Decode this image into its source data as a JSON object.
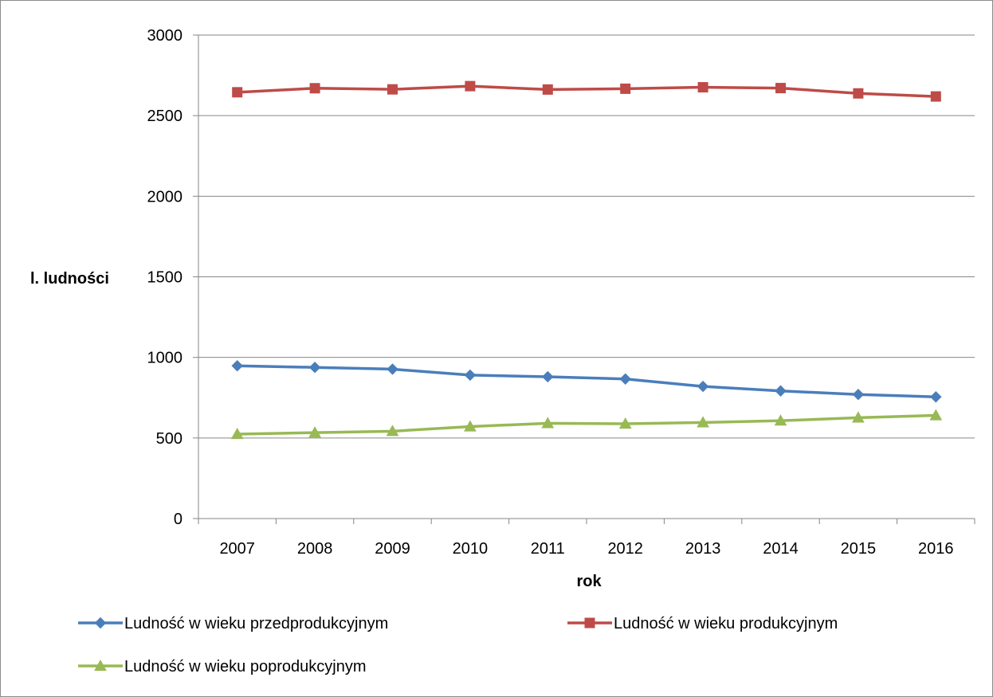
{
  "chart_data": {
    "type": "line",
    "title": "",
    "xlabel": "rok",
    "ylabel": "l. ludności",
    "categories": [
      "2007",
      "2008",
      "2009",
      "2010",
      "2011",
      "2012",
      "2013",
      "2014",
      "2015",
      "2016"
    ],
    "ylim": [
      0,
      3000
    ],
    "yticks": [
      0,
      500,
      1000,
      1500,
      2000,
      2500,
      3000
    ],
    "grid": "horizontal",
    "legend_position": "bottom",
    "series": [
      {
        "name": "Ludność w wieku przedprodukcyjnym",
        "color": "#4a7ebb",
        "marker": "diamond",
        "values": [
          948,
          938,
          927,
          890,
          880,
          866,
          820,
          792,
          770,
          755
        ]
      },
      {
        "name": "Ludność w wieku produkcyjnym",
        "color": "#be4b48",
        "marker": "square",
        "values": [
          2645,
          2670,
          2663,
          2683,
          2662,
          2667,
          2676,
          2671,
          2638,
          2619
        ]
      },
      {
        "name": "Ludność w wieku poprodukcyjnym",
        "color": "#98b954",
        "marker": "triangle",
        "values": [
          524,
          533,
          542,
          571,
          591,
          588,
          596,
          607,
          626,
          640
        ]
      }
    ]
  }
}
